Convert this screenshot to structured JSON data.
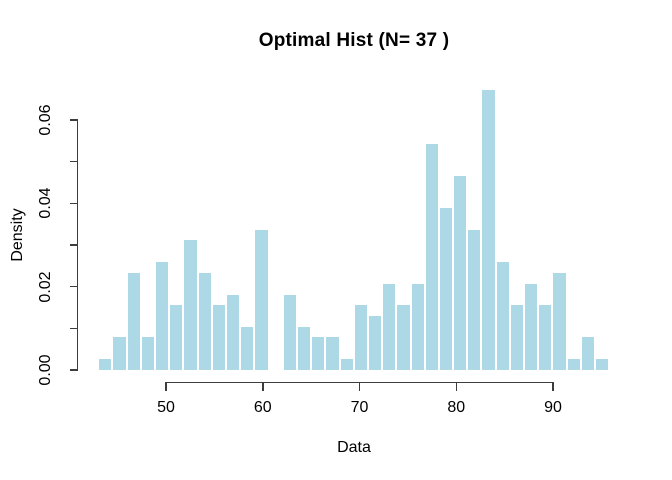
{
  "figure": {
    "title": "Optimal Hist (N= 37 )",
    "x_axis_label": "Data",
    "y_axis_label": "Density"
  },
  "chart_data": {
    "type": "bar",
    "subtype": "histogram",
    "title": "Optimal Hist (N= 37 )",
    "xlabel": "Data",
    "ylabel": "Density",
    "grid": false,
    "legend": "none",
    "xlim": [
      43.0,
      95.8
    ],
    "ylim": [
      0,
      0.067
    ],
    "bin_start": 43.0,
    "bin_width": 1.467,
    "n_bins": 36,
    "densities": [
      0.0026,
      0.0078,
      0.0233,
      0.0078,
      0.0259,
      0.0155,
      0.0311,
      0.0233,
      0.0155,
      0.0181,
      0.0104,
      0.0336,
      0,
      0.0181,
      0.0104,
      0.0078,
      0.0078,
      0.0026,
      0.0155,
      0.0129,
      0.0207,
      0.0155,
      0.0207,
      0.0543,
      0.0388,
      0.0466,
      0.0336,
      0.0672,
      0.0259,
      0.0155,
      0.0207,
      0.0155,
      0.0233,
      0.0026,
      0.0078,
      0.0026
    ],
    "approx_counts": [
      1,
      3,
      9,
      3,
      10,
      6,
      12,
      9,
      6,
      7,
      4,
      13,
      0,
      7,
      4,
      3,
      3,
      1,
      6,
      5,
      8,
      6,
      8,
      21,
      15,
      18,
      13,
      26,
      10,
      6,
      8,
      6,
      9,
      1,
      3,
      1
    ],
    "x_ticks": [
      50,
      60,
      70,
      80,
      90
    ],
    "x_tick_labels": [
      "50",
      "60",
      "70",
      "80",
      "90"
    ],
    "y_ticks": [
      0,
      0.01,
      0.02,
      0.03,
      0.04,
      0.05,
      0.06
    ],
    "y_labeled_ticks": [
      {
        "value": 0,
        "label": "0.00"
      },
      {
        "value": 0.02,
        "label": "0.02"
      },
      {
        "value": 0.04,
        "label": "0.04"
      },
      {
        "value": 0.06,
        "label": "0.06"
      }
    ],
    "bar_color": "#ADD8E6",
    "bar_border_color": "#FFFFFF",
    "axis_color": "#3d3d3d",
    "text_color": "#000000"
  }
}
